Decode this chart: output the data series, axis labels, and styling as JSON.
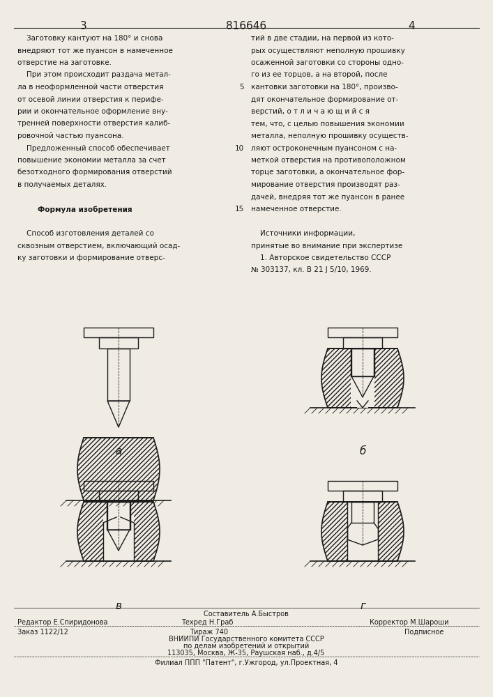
{
  "bg_color": "#f0ece4",
  "text_color": "#1a1a1a",
  "line_color": "#1a1a1a",
  "hatch_color": "#1a1a1a",
  "page_num_left": "3",
  "page_num_center": "816646",
  "page_num_right": "4",
  "col1_text": [
    "    Заготовку кантуют на 180° и снова",
    "внедряют тот же пуансон в намеченное",
    "отверстие на заготовке.",
    "    При этом происходит раздача метал-",
    "ла в неоформленной части отверстия",
    "от осевой линии отверстия к перифе-",
    "рии и окончательное оформление вну-",
    "тренней поверхности отверстия калиб-",
    "ровочной частью пуансона.",
    "    Предложенный способ обеспечивает",
    "повышение экономии металла за счет",
    "безотходного формирования отверстий",
    "в получаемых деталях.",
    "",
    "        Формула изобретения",
    "",
    "    Способ изготовления деталей со",
    "сквозным отверстием, включающий осад-",
    "ку заготовки и формирование отверс-"
  ],
  "col2_text": [
    "тий в две стадии, на первой из кото-",
    "рых осуществляют неполную прошивку",
    "осаженной заготовки со стороны одно-",
    "го из ее торцов, а на второй, после",
    "кантовки заготовки на 180°, произво-",
    "дят окончательное формирование от-",
    "верстий, о т л и ч а ю щ и й с я",
    "тем, что, с целью повышения экономии",
    "металла, неполную прошивку осуществ-",
    "ляют остроконечным пуансоном с на-",
    "меткой отверстия на противоположном",
    "торце заготовки, а окончательное фор-",
    "мирование отверстия производят раз-",
    "дачей, внедряя тот же пуансон в ранее",
    "намеченное отверстие."
  ],
  "col2_linenum_5": "5",
  "col2_linenum_10": "10",
  "col2_linenum_15": "15",
  "sources_header": "    Источники информации,",
  "sources_line1": "принятые во внимание при экспертизе",
  "sources_line2": "    1. Авторское свидетельство СССР",
  "sources_line3": "№ 303137, кл. В 21 J 5/10, 1969.",
  "label_a": "а",
  "label_b": "б",
  "label_v": "в",
  "label_g": "г",
  "footer_line1_center": "Составитель А.Быстров",
  "footer_line2_left": "Редактор Е.Спиридонова",
  "footer_line2_center": "Техред Н.Граб",
  "footer_line2_right": "Корректор М.Шароши",
  "footer_line3_left": "Заказ 1122/12",
  "footer_line3_center": "Тираж 740",
  "footer_line3_right": "Подписное",
  "footer_line4": "ВНИИПИ Государственного комитета СССР",
  "footer_line5": "по делам изобретений и открытий",
  "footer_line6": "113035, Москва, Ж-35, Раушская наб., д.4/5",
  "footer_line7": "Филиал ППП \"Патент\", г.Ужгород, ул.Проектная, 4"
}
